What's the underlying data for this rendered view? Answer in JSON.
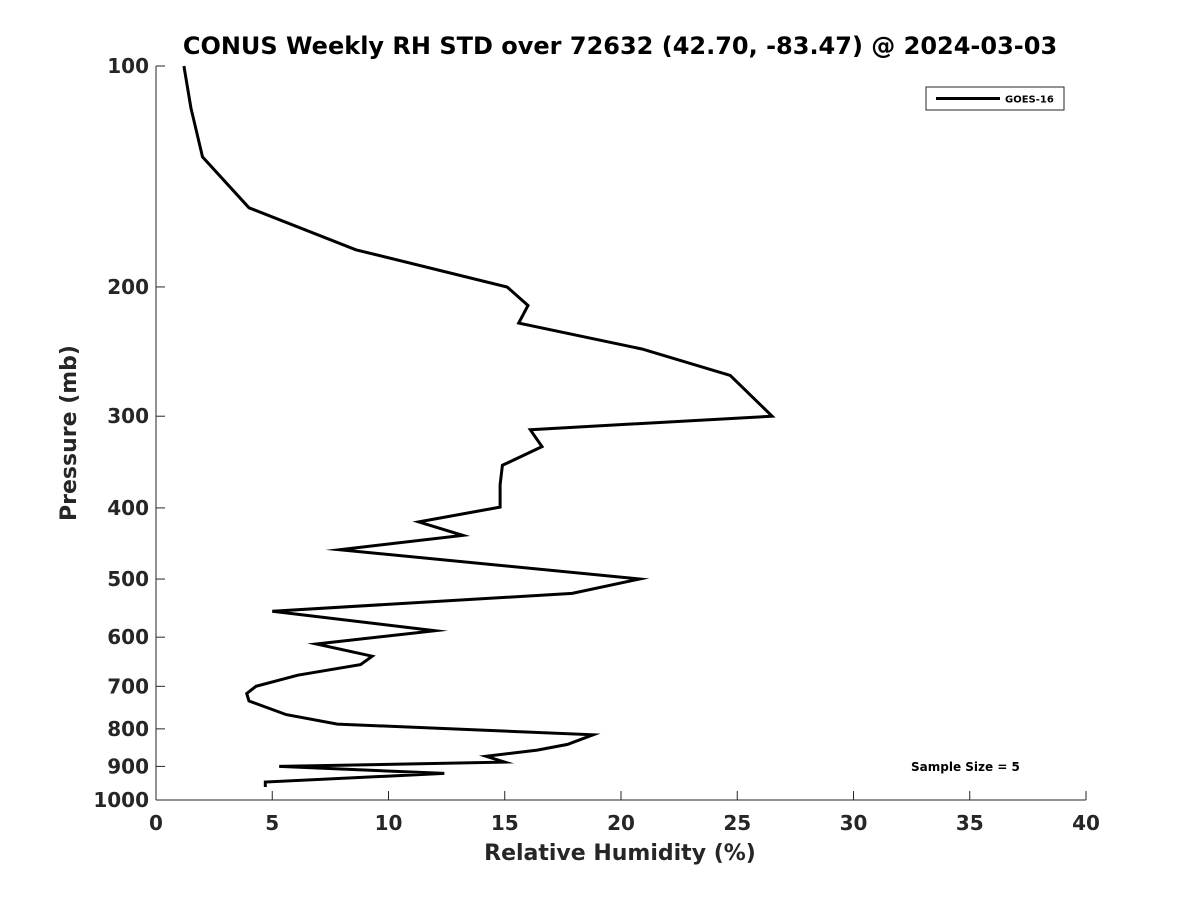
{
  "chart_data": {
    "type": "line",
    "title": "CONUS Weekly RH STD over 72632 (42.70, -83.47) @ 2024-03-03",
    "xlabel": "Relative Humidity (%)",
    "ylabel": "Pressure (mb)",
    "xlim": [
      0,
      40
    ],
    "ylim": [
      100,
      1000
    ],
    "yscale": "log",
    "y_reversed": true,
    "x_ticks": [
      0,
      5,
      10,
      15,
      20,
      25,
      30,
      35,
      40
    ],
    "x_tick_labels": [
      "0",
      "5",
      "10",
      "15",
      "20",
      "25",
      "30",
      "35",
      "40"
    ],
    "y_ticks": [
      100,
      200,
      300,
      400,
      500,
      600,
      700,
      800,
      900,
      1000
    ],
    "y_tick_labels": [
      "100",
      "200",
      "300",
      "400",
      "500",
      "600",
      "700",
      "800",
      "900",
      "1000"
    ],
    "legend": {
      "position": "top-right",
      "entries": [
        "GOES-16"
      ]
    },
    "annotation": "Sample Size = 5",
    "series": [
      {
        "name": "GOES-16",
        "color": "#000000",
        "x": [
          1.2,
          1.5,
          2.0,
          4.0,
          8.6,
          15.1,
          16.0,
          15.6,
          20.9,
          24.7,
          26.5,
          16.1,
          16.6,
          14.9,
          14.8,
          14.8,
          11.3,
          13.2,
          7.9,
          20.8,
          17.9,
          5.0,
          12.0,
          6.9,
          9.3,
          8.8,
          6.1,
          4.3,
          3.9,
          4.0,
          5.6,
          7.8,
          18.8,
          17.7,
          16.4,
          14.2,
          15.0,
          5.3,
          12.4,
          4.7,
          4.7
        ],
        "y": [
          100,
          114,
          133,
          156,
          178,
          200,
          212,
          224,
          243,
          264,
          300,
          313,
          330,
          350,
          372,
          399,
          418,
          436,
          456,
          500,
          523,
          553,
          588,
          613,
          637,
          654,
          676,
          700,
          716,
          733,
          765,
          788,
          815,
          840,
          855,
          872,
          888,
          900,
          920,
          945,
          960
        ]
      }
    ]
  }
}
